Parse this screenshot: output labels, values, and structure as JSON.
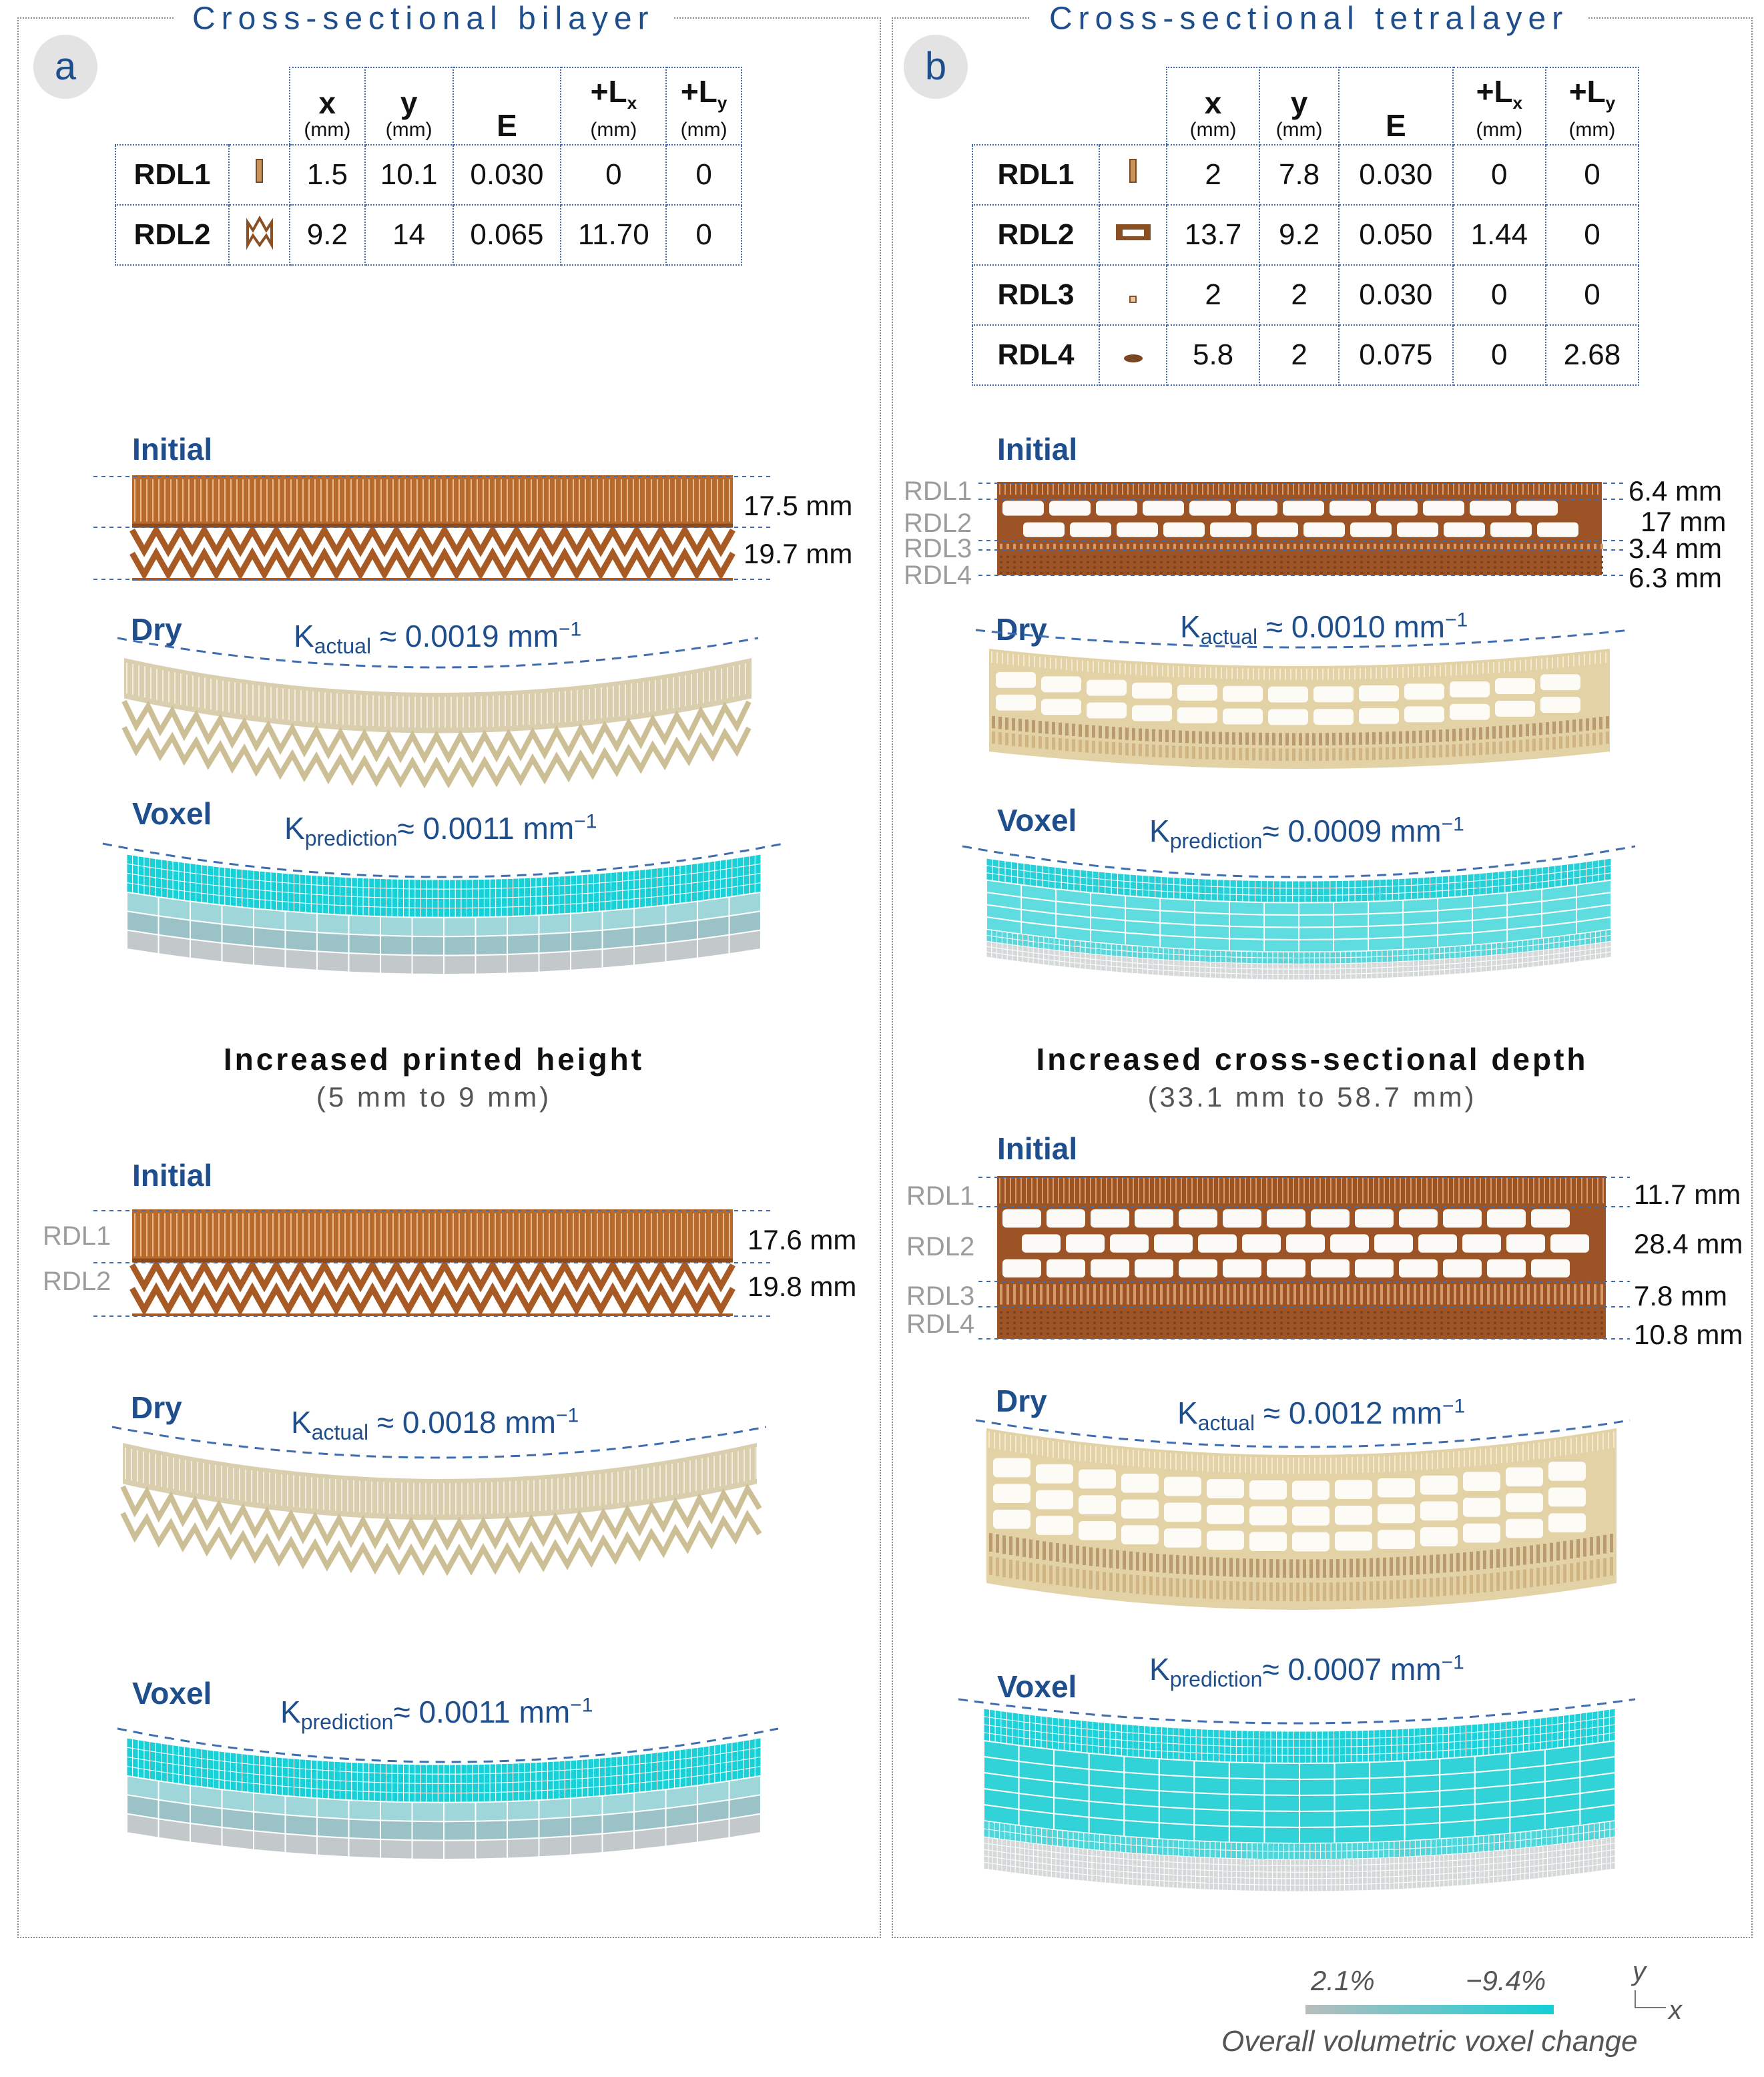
{
  "panel_a": {
    "label": "a",
    "title": "Cross-sectional bilayer",
    "table": {
      "headers": [
        {
          "sym": "x",
          "sub": "",
          "unit": "(mm)"
        },
        {
          "sym": "y",
          "sub": "",
          "unit": "(mm)"
        },
        {
          "sym": "E",
          "sub": "",
          "unit": ""
        },
        {
          "sym": "+L",
          "sub": "x",
          "unit": "(mm)"
        },
        {
          "sym": "+L",
          "sub": "y",
          "unit": "(mm)"
        }
      ],
      "rows": [
        {
          "name": "RDL1",
          "icon": "rdl1-slot-icon",
          "x": "1.5",
          "y": "10.1",
          "E": "0.030",
          "Lx": "0",
          "Ly": "0"
        },
        {
          "name": "RDL2",
          "icon": "rdl2-zigzag-icon",
          "x": "9.2",
          "y": "14",
          "E": "0.065",
          "Lx": "11.70",
          "Ly": "0"
        }
      ]
    },
    "top": {
      "initial_label": "Initial",
      "dims": [
        "17.5 mm",
        "19.7 mm"
      ],
      "dry_label": "Dry",
      "dry_k": {
        "sym": "K",
        "sub": "actual",
        "text": "≈ 0.0019 mm",
        "sup": "−1"
      },
      "voxel_label": "Voxel",
      "voxel_k": {
        "sym": "K",
        "sub": "prediction",
        "text": "≈ 0.0011 mm",
        "sup": "−1"
      }
    },
    "variation": {
      "title": "Increased printed height",
      "subtitle": "(5 mm to 9 mm)"
    },
    "bottom": {
      "initial_label": "Initial",
      "rdl_labels": [
        "RDL1",
        "RDL2"
      ],
      "dims": [
        "17.6 mm",
        "19.8 mm"
      ],
      "dry_label": "Dry",
      "dry_k": {
        "sym": "K",
        "sub": "actual",
        "text": "≈ 0.0018 mm",
        "sup": "−1"
      },
      "voxel_label": "Voxel",
      "voxel_k": {
        "sym": "K",
        "sub": "prediction",
        "text": "≈ 0.0011 mm",
        "sup": "−1"
      }
    }
  },
  "panel_b": {
    "label": "b",
    "title": "Cross-sectional tetralayer",
    "table": {
      "headers": [
        {
          "sym": "x",
          "sub": "",
          "unit": "(mm)"
        },
        {
          "sym": "y",
          "sub": "",
          "unit": "(mm)"
        },
        {
          "sym": "E",
          "sub": "",
          "unit": ""
        },
        {
          "sym": "+L",
          "sub": "x",
          "unit": "(mm)"
        },
        {
          "sym": "+L",
          "sub": "y",
          "unit": "(mm)"
        }
      ],
      "rows": [
        {
          "name": "RDL1",
          "icon": "rdl1-slot-icon",
          "x": "2",
          "y": "7.8",
          "E": "0.030",
          "Lx": "0",
          "Ly": "0"
        },
        {
          "name": "RDL2",
          "icon": "rdl2-frame-icon",
          "x": "13.7",
          "y": "9.2",
          "E": "0.050",
          "Lx": "1.44",
          "Ly": "0"
        },
        {
          "name": "RDL3",
          "icon": "rdl3-square-icon",
          "x": "2",
          "y": "2",
          "E": "0.030",
          "Lx": "0",
          "Ly": "0"
        },
        {
          "name": "RDL4",
          "icon": "rdl4-blob-icon",
          "x": "5.8",
          "y": "2",
          "E": "0.075",
          "Lx": "0",
          "Ly": "2.68"
        }
      ]
    },
    "top": {
      "initial_label": "Initial",
      "rdl_labels": [
        "RDL1",
        "RDL2",
        "RDL3",
        "RDL4"
      ],
      "dims": [
        "6.4 mm",
        "17 mm",
        "3.4 mm",
        "6.3 mm"
      ],
      "dry_label": "Dry",
      "dry_k": {
        "sym": "K",
        "sub": "actual",
        "text": "≈ 0.0010 mm",
        "sup": "−1"
      },
      "voxel_label": "Voxel",
      "voxel_k": {
        "sym": "K",
        "sub": "prediction",
        "text": "≈ 0.0009 mm",
        "sup": "−1"
      }
    },
    "variation": {
      "title": "Increased cross-sectional depth",
      "subtitle": "(33.1 mm to 58.7 mm)"
    },
    "bottom": {
      "initial_label": "Initial",
      "rdl_labels": [
        "RDL1",
        "RDL2",
        "RDL3",
        "RDL4"
      ],
      "dims": [
        "11.7 mm",
        "28.4 mm",
        "7.8 mm",
        "10.8 mm"
      ],
      "dry_label": "Dry",
      "dry_k": {
        "sym": "K",
        "sub": "actual",
        "text": "≈ 0.0012 mm",
        "sup": "−1"
      },
      "voxel_label": "Voxel",
      "voxel_k": {
        "sym": "K",
        "sub": "prediction",
        "text": "≈ 0.0007 mm",
        "sup": "−1"
      }
    }
  },
  "legend": {
    "min_label": "2.1%",
    "max_label": "−9.4%",
    "caption": "Overall volumetric voxel change",
    "color_low": "#b9bcbd",
    "color_high": "#13cfd6",
    "axis_y": "y",
    "axis_x": "x"
  },
  "colors": {
    "accent": "#1f4e8c",
    "print_brown": "#b0622b",
    "dry_beige": "#e3d9bd",
    "voxel_cyan": "#17d0d7",
    "voxel_grey": "#b7bdbe"
  }
}
